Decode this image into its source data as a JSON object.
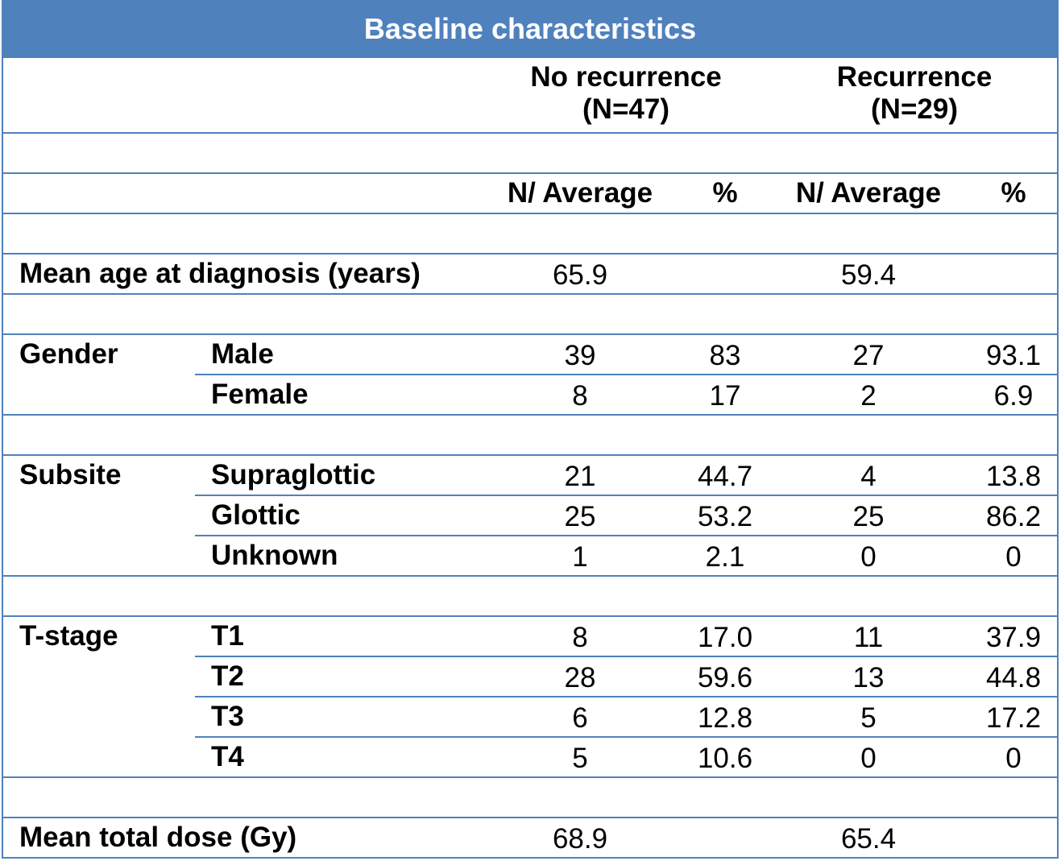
{
  "title": "Baseline characteristics",
  "groups": [
    {
      "label": "No recurrence",
      "n": "(N=47)"
    },
    {
      "label": "Recurrence",
      "n": "(N=29)"
    }
  ],
  "subheaders": {
    "navg": "N/ Average",
    "pct": "%"
  },
  "mean_age": {
    "label": "Mean age at diagnosis (years)",
    "no_rec": "65.9",
    "rec": "59.4"
  },
  "sections": [
    {
      "name": "Gender",
      "rows": [
        {
          "label": "Male",
          "v": [
            "39",
            "83",
            "27",
            "93.1"
          ]
        },
        {
          "label": "Female",
          "v": [
            "8",
            "17",
            "2",
            "6.9"
          ]
        }
      ]
    },
    {
      "name": "Subsite",
      "rows": [
        {
          "label": "Supraglottic",
          "v": [
            "21",
            "44.7",
            "4",
            "13.8"
          ]
        },
        {
          "label": "Glottic",
          "v": [
            "25",
            "53.2",
            "25",
            "86.2"
          ]
        },
        {
          "label": "Unknown",
          "v": [
            "1",
            "2.1",
            "0",
            "0"
          ]
        }
      ]
    },
    {
      "name": "T-stage",
      "rows": [
        {
          "label": "T1",
          "v": [
            "8",
            "17.0",
            "11",
            "37.9"
          ]
        },
        {
          "label": "T2",
          "v": [
            "28",
            "59.6",
            "13",
            "44.8"
          ]
        },
        {
          "label": "T3",
          "v": [
            "6",
            "12.8",
            "5",
            "17.2"
          ]
        },
        {
          "label": "T4",
          "v": [
            "5",
            "10.6",
            "0",
            "0"
          ]
        }
      ]
    }
  ],
  "mean_dose": {
    "label": "Mean total dose (Gy)",
    "no_rec": "68.9",
    "rec": "65.4"
  },
  "colors": {
    "accent": "#4f81bd",
    "title_text": "#ffffff"
  }
}
